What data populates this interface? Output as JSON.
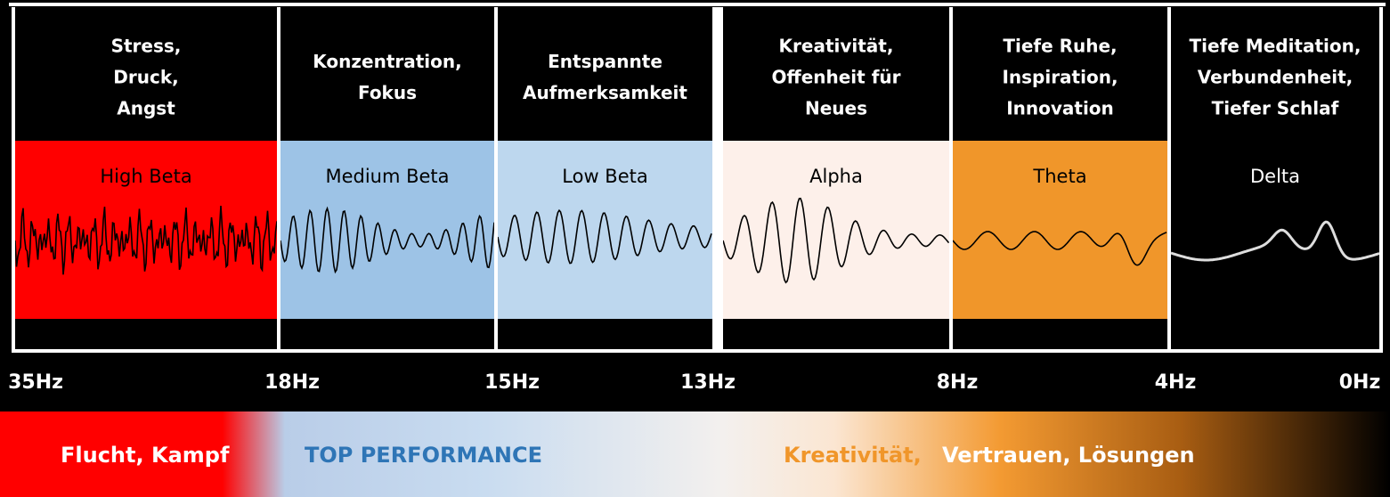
{
  "bands": [
    {
      "header": [
        "Stress,",
        "Druck,",
        "Angst"
      ],
      "name": "High Beta"
    },
    {
      "header": [
        "Konzentration,",
        "Fokus"
      ],
      "name": "Medium Beta"
    },
    {
      "header": [
        "Entspannte",
        "Aufmerksamkeit"
      ],
      "name": "Low Beta"
    },
    {
      "header": [
        "Kreativität,",
        "Offenheit für",
        "Neues"
      ],
      "name": "Alpha"
    },
    {
      "header": [
        "Tiefe Ruhe,",
        "Inspiration,",
        "Innovation"
      ],
      "name": "Theta"
    },
    {
      "header": [
        "Tiefe Meditation,",
        "Verbundenheit,",
        "Tiefer Schlaf"
      ],
      "name": "Delta"
    }
  ],
  "frequencies": [
    "35Hz",
    "18Hz",
    "15Hz",
    "13Hz",
    "8Hz",
    "4Hz",
    "0Hz"
  ],
  "bottom": {
    "escape": "Flucht, Kampf",
    "performance": "TOP PERFORMANCE",
    "creativity": "Kreativität,",
    "trust": "Vertrauen, Lösungen"
  }
}
